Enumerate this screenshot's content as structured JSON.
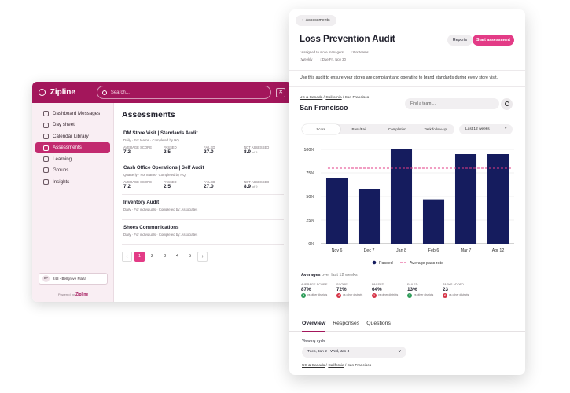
{
  "app": {
    "logo": "Zipline",
    "search_placeholder": "Search..."
  },
  "sidebar": {
    "items": [
      {
        "label": "Dashboard Messages",
        "icon": "home-icon"
      },
      {
        "label": "Day sheet",
        "icon": "calendar-icon"
      },
      {
        "label": "Calendar Library",
        "icon": "library-icon"
      },
      {
        "label": "Assessments",
        "icon": "clipboard-icon",
        "active": true
      },
      {
        "label": "Learning",
        "icon": "learning-icon"
      },
      {
        "label": "Groups",
        "icon": "groups-icon"
      },
      {
        "label": "Insights",
        "icon": "insights-icon"
      }
    ],
    "store": {
      "initials": "BP",
      "name": "248 - Bellgrove Plaza"
    },
    "powered_by": "Powered by",
    "powered_brand": "Zipline"
  },
  "assessments": {
    "title": "Assessments",
    "audits": [
      {
        "title": "DM Store Visit | Standards Audit",
        "meta": "Daily  ·  For teams  ·  Completed by HQ",
        "stats": [
          {
            "label": "AVERAGE SCORE",
            "value": "7.2",
            "suffix": ""
          },
          {
            "label": "PASSED",
            "value": "2.5",
            "suffix": ""
          },
          {
            "label": "FAILED",
            "value": "27.0",
            "suffix": ""
          },
          {
            "label": "NOT ASSESSED",
            "value": "8.9",
            "suffix": "of 9"
          }
        ]
      },
      {
        "title": "Cash Office Operations | Self Audit",
        "meta": "Quarterly  ·  For teams  ·  Completed by HQ",
        "stats": [
          {
            "label": "AVERAGE SCORE",
            "value": "7.2",
            "suffix": ""
          },
          {
            "label": "PASSED",
            "value": "2.5",
            "suffix": ""
          },
          {
            "label": "FAILED",
            "value": "27.0",
            "suffix": ""
          },
          {
            "label": "NOT ASSESSED",
            "value": "8.9",
            "suffix": "of 9"
          }
        ]
      },
      {
        "title": "Inventory Audit",
        "meta": "Daily  ·  For individuals  ·  Completed by: Associates"
      },
      {
        "title": "Shoes Communications",
        "meta": "Daily  ·  For individuals  ·  Completed by: Associates"
      }
    ],
    "pages": [
      "1",
      "2",
      "3",
      "4",
      "5"
    ],
    "current_page": "1",
    "prev": "‹",
    "next": "›"
  },
  "detail": {
    "back_label": "Assessments",
    "title": "Loss Prevention Audit",
    "reports_button": "Reports",
    "start_button": "Start assessment",
    "meta_line1": [
      "Assigned to store managers",
      "For teams"
    ],
    "meta_line2": [
      "Weekly",
      "Due Fri, Nov 30"
    ],
    "description": "Use this audit to ensure your stores are compliant and operating to brand standards during every store visit.",
    "breadcrumb": [
      "US & Canada",
      "California",
      "San Francisco"
    ],
    "location": "San Francisco",
    "find_placeholder": "Find a team ...",
    "tabs": [
      "Score",
      "Pass/Fail",
      "Completion",
      "Task follow-up"
    ],
    "active_tab": "Score",
    "range": "Last 12 weeks",
    "averages_title": "Averages",
    "averages_sub": "over last 12 weeks",
    "averages": [
      {
        "label": "AVERAGE SCORE",
        "value": "87%",
        "badge": "2",
        "badge_color": "green",
        "note": "vs other districts"
      },
      {
        "label": "SCORE",
        "value": "72%",
        "badge": "4",
        "badge_color": "red",
        "note": "vs other districts"
      },
      {
        "label": "PASSED",
        "value": "64%",
        "badge": "1",
        "badge_color": "red",
        "note": "vs other districts"
      },
      {
        "label": "FAILED",
        "value": "13%",
        "badge": "2",
        "badge_color": "green",
        "note": "vs other districts"
      },
      {
        "label": "TASKS ADDED",
        "value": "23",
        "badge": "6",
        "badge_color": "red",
        "note": "vs other districts"
      }
    ],
    "bottom_tabs": [
      "Overview",
      "Responses",
      "Questions"
    ],
    "active_bottom_tab": "Overview",
    "viewing_cycle_label": "Viewing cycle",
    "viewing_cycle_value": "Tues, Jan 2 - Wed, Jan 3",
    "breadcrumb2": [
      "US & Canada",
      "California",
      "San Francisco"
    ]
  },
  "colors": {
    "brand": "#a3165b",
    "accent": "#e33b86",
    "bar": "#151c5e"
  },
  "chart_data": {
    "type": "bar",
    "categories": [
      "Nov 6",
      "Dec 7",
      "Jan 8",
      "Feb 6",
      "Mar 7",
      "Apr 12"
    ],
    "series": [
      {
        "name": "Passed",
        "values": [
          70,
          58,
          100,
          47,
          95,
          95
        ]
      },
      {
        "name": "Average pass rate",
        "type": "line",
        "values": [
          80,
          80,
          80,
          80,
          80,
          80
        ]
      }
    ],
    "yticks": [
      "0%",
      "25%",
      "50%",
      "75%",
      "100%"
    ],
    "ylim": [
      0,
      100
    ],
    "legend": "bottom",
    "grid": true
  }
}
